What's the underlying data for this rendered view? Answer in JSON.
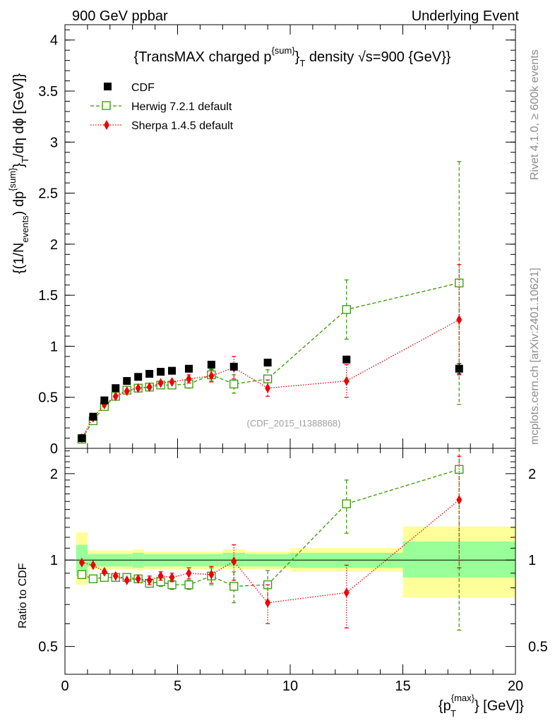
{
  "header": {
    "left": "900 GeV ppbar",
    "right": "Underlying Event"
  },
  "side_text": {
    "rivet": "Rivet 4.1.0, ≥ 600k events",
    "mcplots": "mcplots.cern.ch [arXiv:2401.10621]"
  },
  "colors": {
    "cdf": "#000000",
    "herwig": "#339900",
    "sherpa": "#ee0000",
    "band_inner": "#99ff99",
    "band_outer": "#ffff99"
  },
  "chart_data": [
    {
      "type": "scatter",
      "title": "{TransMAX charged p^{sum}_T density √s=900 {GeV}}",
      "ylabel": "{(1/N_events) dp^{sum}_T /dη dϕ [GeV]}",
      "ylabel_parts": {
        "a": "{(1/N",
        "a_sub": "events",
        "b": ") dp",
        "b_sup": "{sum}",
        "c": "}",
        "c_sub": "T",
        "d": "/dη dϕ [GeV]}"
      },
      "title_parts": {
        "a": "{TransMAX charged p",
        "a_sup": "{sum}",
        "b": "}",
        "b_sub": "T",
        "c": " density √s=900 {GeV}}"
      },
      "xlim": [
        0,
        20
      ],
      "ylim": [
        0,
        4.15
      ],
      "yticks": [
        0,
        0.5,
        1,
        1.5,
        2,
        2.5,
        3,
        3.5,
        4
      ],
      "ytick_labels": [
        "0",
        "0.5",
        "1",
        "1.5",
        "2",
        "2.5",
        "3",
        "3.5",
        "4"
      ],
      "watermark": "(CDF_2015_I1388868)",
      "legend": {
        "placement": "top-left",
        "entries": [
          "CDF",
          "Herwig 7.2.1 default",
          "Sherpa 1.4.5 default"
        ]
      },
      "series": [
        {
          "name": "CDF",
          "marker": "filled-square",
          "x": [
            0.75,
            1.25,
            1.75,
            2.25,
            2.75,
            3.25,
            3.75,
            4.25,
            4.75,
            5.5,
            6.5,
            7.5,
            9.0,
            12.5,
            17.5
          ],
          "y": [
            0.1,
            0.31,
            0.47,
            0.59,
            0.66,
            0.7,
            0.73,
            0.75,
            0.76,
            0.78,
            0.82,
            0.8,
            0.84,
            0.87,
            0.78
          ],
          "yerr": [
            0.005,
            0.01,
            0.01,
            0.01,
            0.01,
            0.01,
            0.01,
            0.01,
            0.01,
            0.01,
            0.01,
            0.015,
            0.02,
            0.03,
            0.05
          ]
        },
        {
          "name": "Herwig 7.2.1 default",
          "marker": "open-square",
          "line": "dashed",
          "x": [
            0.75,
            1.25,
            1.75,
            2.25,
            2.75,
            3.25,
            3.75,
            4.25,
            4.75,
            5.5,
            6.5,
            7.5,
            9.0,
            12.5,
            17.5
          ],
          "y": [
            0.09,
            0.27,
            0.41,
            0.51,
            0.57,
            0.59,
            0.6,
            0.62,
            0.62,
            0.63,
            0.72,
            0.63,
            0.68,
            1.36,
            1.62
          ],
          "yerr": [
            0.005,
            0.01,
            0.01,
            0.02,
            0.02,
            0.02,
            0.03,
            0.03,
            0.03,
            0.04,
            0.06,
            0.09,
            0.09,
            0.29,
            1.19
          ]
        },
        {
          "name": "Sherpa 1.4.5 default",
          "marker": "filled-diamond",
          "line": "dotted",
          "x": [
            0.75,
            1.25,
            1.75,
            2.25,
            2.75,
            3.25,
            3.75,
            4.25,
            4.75,
            5.5,
            6.5,
            7.5,
            9.0,
            12.5,
            17.5
          ],
          "y": [
            0.1,
            0.3,
            0.43,
            0.51,
            0.56,
            0.59,
            0.6,
            0.64,
            0.65,
            0.68,
            0.71,
            0.79,
            0.59,
            0.66,
            1.26
          ],
          "yerr": [
            0.005,
            0.01,
            0.01,
            0.02,
            0.02,
            0.02,
            0.03,
            0.03,
            0.03,
            0.04,
            0.06,
            0.11,
            0.08,
            0.16,
            0.54
          ]
        }
      ]
    },
    {
      "type": "scatter",
      "ylabel": "Ratio to CDF",
      "xlabel": "{p^{max}_T} [GeV]}",
      "xlabel_parts": {
        "a": "{p",
        "a_sup": "{max}",
        "a_sub": "T",
        "b": "} [GeV]}"
      },
      "yscale": "log",
      "ylim": [
        0.4,
        2.45
      ],
      "yticks": [
        0.5,
        1,
        2
      ],
      "ytick_labels": [
        "0.5",
        "1",
        "2"
      ],
      "xticks": [
        0,
        5,
        10,
        15,
        20
      ],
      "xtick_labels": [
        "0",
        "5",
        "10",
        "15",
        "20"
      ],
      "uncertainty_bands": [
        {
          "x0": 0.5,
          "x1": 1.0,
          "inner": [
            0.88,
            1.13
          ],
          "outer": [
            0.82,
            1.25
          ]
        },
        {
          "x0": 1.0,
          "x1": 3.0,
          "inner": [
            0.95,
            1.05
          ],
          "outer": [
            0.93,
            1.08
          ]
        },
        {
          "x0": 3.0,
          "x1": 3.5,
          "inner": [
            0.94,
            1.06
          ],
          "outer": [
            0.92,
            1.09
          ]
        },
        {
          "x0": 3.5,
          "x1": 7.0,
          "inner": [
            0.95,
            1.05
          ],
          "outer": [
            0.93,
            1.07
          ]
        },
        {
          "x0": 7.0,
          "x1": 8.0,
          "inner": [
            0.95,
            1.06
          ],
          "outer": [
            0.93,
            1.09
          ]
        },
        {
          "x0": 8.0,
          "x1": 10.0,
          "inner": [
            0.95,
            1.05
          ],
          "outer": [
            0.93,
            1.07
          ]
        },
        {
          "x0": 10.0,
          "x1": 15.0,
          "inner": [
            0.94,
            1.06
          ],
          "outer": [
            0.91,
            1.1
          ]
        },
        {
          "x0": 15.0,
          "x1": 20.0,
          "inner": [
            0.87,
            1.16
          ],
          "outer": [
            0.74,
            1.31
          ]
        }
      ],
      "series": [
        {
          "name": "Herwig 7.2.1 default",
          "x": [
            0.75,
            1.25,
            1.75,
            2.25,
            2.75,
            3.25,
            3.75,
            4.25,
            4.75,
            5.5,
            6.5,
            7.5,
            9.0,
            12.5,
            17.5
          ],
          "y": [
            0.89,
            0.86,
            0.87,
            0.87,
            0.87,
            0.86,
            0.83,
            0.84,
            0.82,
            0.82,
            0.88,
            0.81,
            0.82,
            1.57,
            2.07
          ],
          "yerr": [
            0.01,
            0.01,
            0.02,
            0.02,
            0.02,
            0.02,
            0.02,
            0.03,
            0.03,
            0.03,
            0.06,
            0.1,
            0.1,
            0.33,
            1.5
          ]
        },
        {
          "name": "Sherpa 1.4.5 default",
          "x": [
            0.75,
            1.25,
            1.75,
            2.25,
            2.75,
            3.25,
            3.75,
            4.25,
            4.75,
            5.5,
            6.5,
            7.5,
            9.0,
            12.5,
            17.5
          ],
          "y": [
            0.98,
            0.96,
            0.91,
            0.88,
            0.85,
            0.86,
            0.85,
            0.88,
            0.87,
            0.9,
            0.89,
            0.99,
            0.71,
            0.77,
            1.62
          ],
          "yerr": [
            0.01,
            0.01,
            0.02,
            0.02,
            0.02,
            0.02,
            0.03,
            0.03,
            0.03,
            0.04,
            0.06,
            0.14,
            0.11,
            0.19,
            0.68
          ]
        }
      ]
    }
  ]
}
